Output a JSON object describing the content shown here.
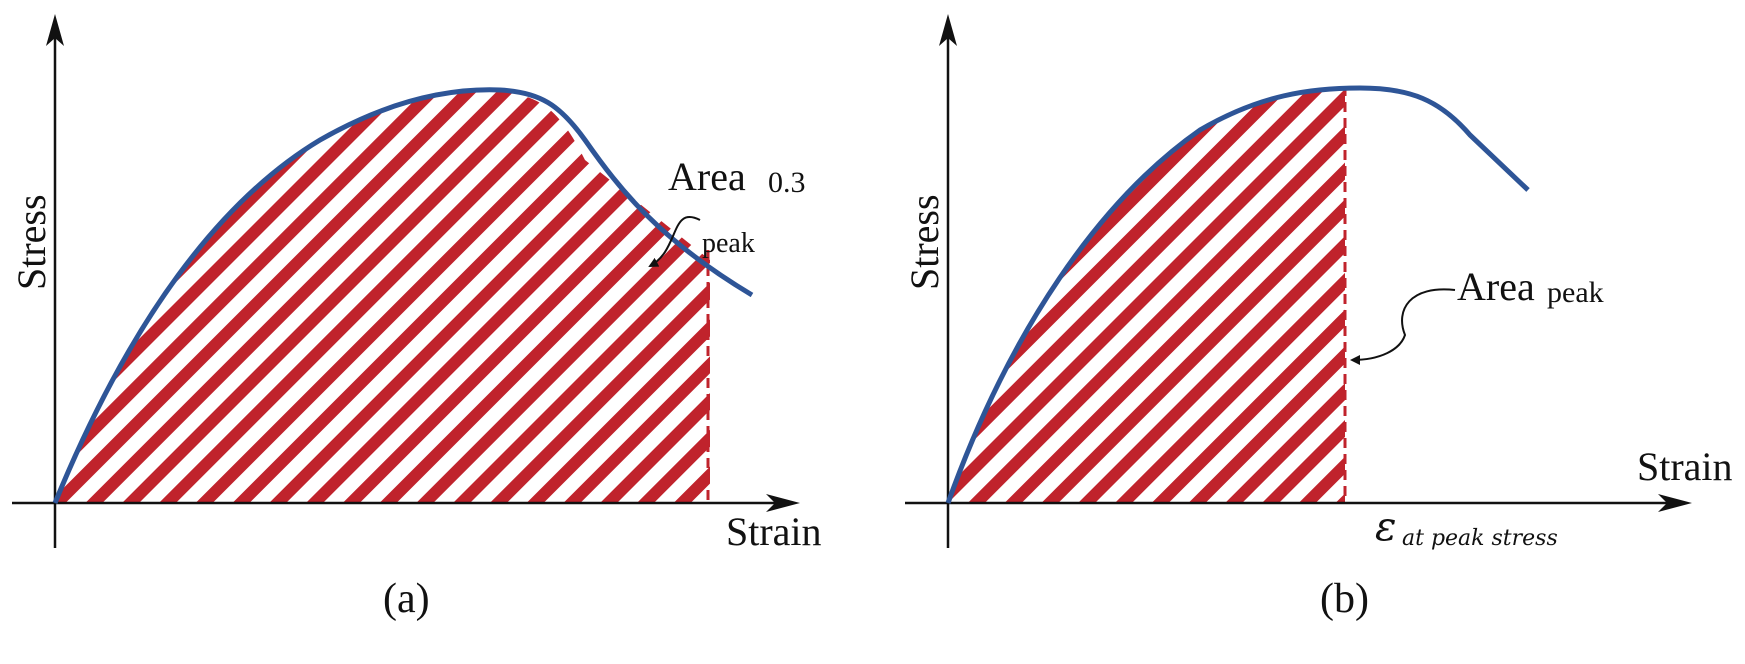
{
  "colors": {
    "curve": "#2e5597",
    "hatch": "#c0232c",
    "axis": "#111111"
  },
  "panel_a": {
    "y_axis_label": "Stress",
    "x_axis_label": "Strain",
    "area_label": "Area",
    "area_subscript": "0.3",
    "annotation_sub": "peak",
    "caption": "(a)"
  },
  "panel_b": {
    "y_axis_label": "Stress",
    "x_axis_label": "Strain",
    "area_label": "Area",
    "area_subscript": "peak",
    "epsilon_symbol": "ε",
    "epsilon_subscript": "at peak stress",
    "caption": "(b)"
  }
}
